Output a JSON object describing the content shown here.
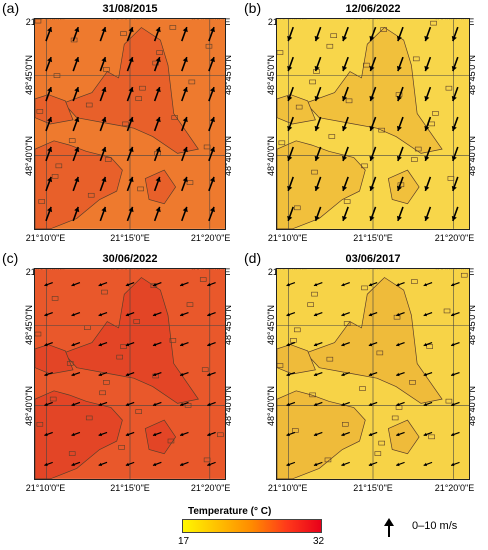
{
  "panels": [
    {
      "letter": "(a)",
      "date": "31/08/2015",
      "base_color": "#ee7a2e",
      "patch_color": "#e8602a",
      "arrow_direction": "NNE",
      "arrow_size": "large"
    },
    {
      "letter": "(b)",
      "date": "12/06/2022",
      "base_color": "#f8d64a",
      "patch_color": "#f1c03c",
      "arrow_direction": "SSW",
      "arrow_size": "large"
    },
    {
      "letter": "(c)",
      "date": "30/06/2022",
      "base_color": "#e9582b",
      "patch_color": "#e34526",
      "arrow_direction": "WSW",
      "arrow_size": "small"
    },
    {
      "letter": "(d)",
      "date": "03/06/2017",
      "base_color": "#f7d347",
      "patch_color": "#efbb3a",
      "arrow_direction": "WSW",
      "arrow_size": "small"
    }
  ],
  "axes": {
    "x_ticks": [
      "21°10'0\"E",
      "21°15'0\"E",
      "21°20'0\"E"
    ],
    "y_ticks": [
      "48°45'0\"N",
      "48°40'0\"N"
    ]
  },
  "legend": {
    "title": "Temperature (° C)",
    "min": "17",
    "max": "32",
    "gradient": [
      "#fff700",
      "#ffc000",
      "#ff8a00",
      "#ff3a1a",
      "#e8001a"
    ],
    "wind_label": "0–10 m/s"
  }
}
